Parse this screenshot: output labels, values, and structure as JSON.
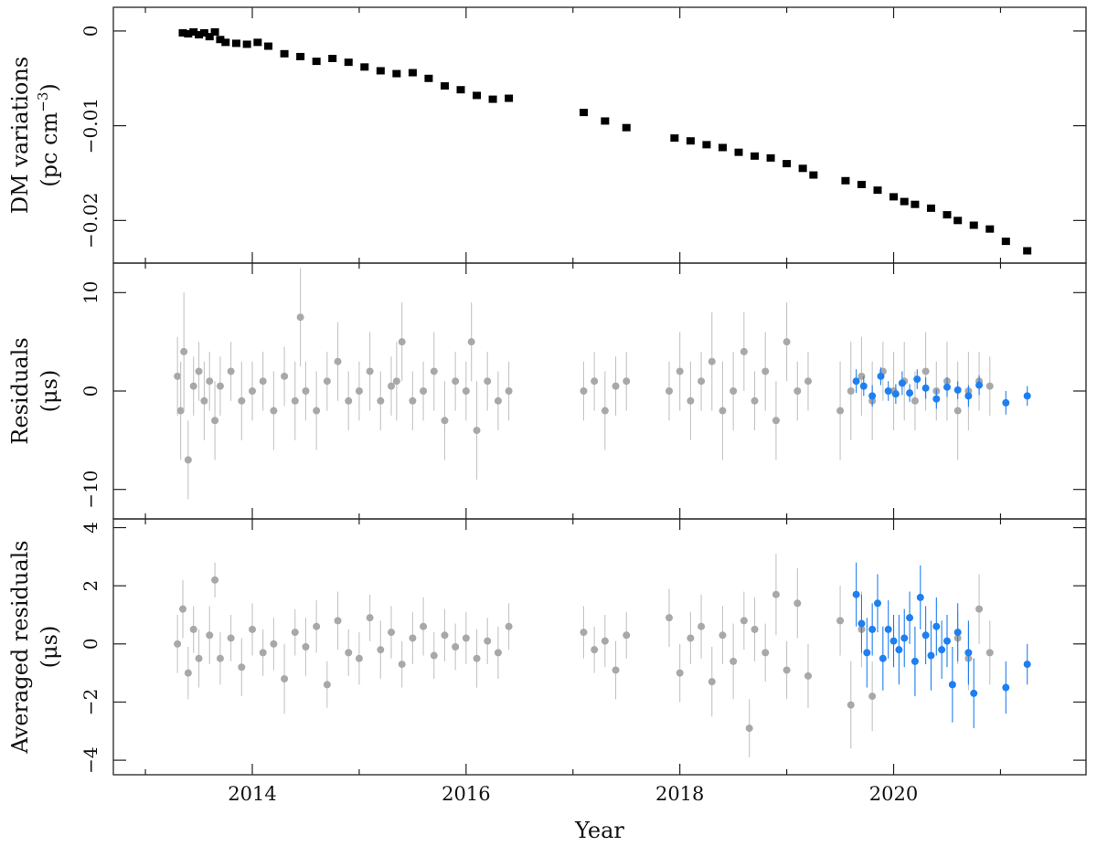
{
  "chart_data": [
    {
      "type": "scatter",
      "panel": "top",
      "ylabel_line1": "DM variations",
      "ylabel_line2_prefix": "(pc cm",
      "ylabel_line2_sup": "−3",
      "ylabel_line2_suffix": ")",
      "xlim": [
        2012.7,
        2021.8
      ],
      "ylim": [
        -0.0245,
        0.0025
      ],
      "yticks": [
        0,
        -0.01,
        -0.02
      ],
      "ytick_labels": [
        "0",
        "−0.01",
        "−0.02"
      ],
      "marker_color": "#000000",
      "series": [
        {
          "x": [
            2013.35,
            2013.4,
            2013.45,
            2013.5,
            2013.55,
            2013.6,
            2013.65,
            2013.7,
            2013.75,
            2013.85,
            2013.95,
            2014.05,
            2014.15,
            2014.3,
            2014.45,
            2014.6,
            2014.75,
            2014.9,
            2015.05,
            2015.2,
            2015.35,
            2015.5,
            2015.65,
            2015.8,
            2015.95,
            2016.1,
            2016.25,
            2016.4,
            2017.1,
            2017.3,
            2017.5,
            2017.95,
            2018.1,
            2018.25,
            2018.4,
            2018.55,
            2018.7,
            2018.85,
            2019.0,
            2019.15,
            2019.25,
            2019.55,
            2019.7,
            2019.85,
            2020.0,
            2020.1,
            2020.2,
            2020.35,
            2020.5,
            2020.6,
            2020.75,
            2020.9,
            2021.05,
            2021.25
          ],
          "y": [
            -0.0002,
            -0.0003,
            -0.0001,
            -0.0004,
            -0.0002,
            -0.0006,
            -0.0001,
            -0.0009,
            -0.0012,
            -0.0013,
            -0.0014,
            -0.0012,
            -0.0016,
            -0.0024,
            -0.0027,
            -0.0032,
            -0.0029,
            -0.0033,
            -0.0038,
            -0.0042,
            -0.0045,
            -0.0044,
            -0.005,
            -0.0058,
            -0.0062,
            -0.0068,
            -0.0072,
            -0.0071,
            -0.0086,
            -0.0095,
            -0.0102,
            -0.0113,
            -0.0116,
            -0.012,
            -0.0123,
            -0.0128,
            -0.0132,
            -0.0134,
            -0.014,
            -0.0145,
            -0.0152,
            -0.0158,
            -0.0162,
            -0.0168,
            -0.0175,
            -0.018,
            -0.0183,
            -0.0187,
            -0.0194,
            -0.02,
            -0.0205,
            -0.0209,
            -0.0222,
            -0.0232
          ]
        }
      ]
    },
    {
      "type": "scatter",
      "panel": "middle",
      "ylabel_line1": "Residuals",
      "ylabel_line2": "(μs)",
      "xlim": [
        2012.7,
        2021.8
      ],
      "ylim": [
        -13,
        13
      ],
      "yticks": [
        10,
        0,
        -10
      ],
      "ytick_labels": [
        "10",
        "0",
        "−10"
      ],
      "series": [
        {
          "color": "#a8a8a8",
          "x": [
            2013.3,
            2013.33,
            2013.36,
            2013.4,
            2013.45,
            2013.5,
            2013.55,
            2013.6,
            2013.65,
            2013.7,
            2013.8,
            2013.9,
            2014.0,
            2014.1,
            2014.2,
            2014.3,
            2014.4,
            2014.45,
            2014.5,
            2014.6,
            2014.7,
            2014.8,
            2014.9,
            2015.0,
            2015.1,
            2015.2,
            2015.3,
            2015.35,
            2015.4,
            2015.5,
            2015.6,
            2015.7,
            2015.8,
            2015.9,
            2016.0,
            2016.05,
            2016.1,
            2016.2,
            2016.3,
            2016.4,
            2017.1,
            2017.2,
            2017.3,
            2017.4,
            2017.5,
            2017.9,
            2018.0,
            2018.1,
            2018.2,
            2018.3,
            2018.4,
            2018.5,
            2018.6,
            2018.7,
            2018.8,
            2018.9,
            2019.0,
            2019.1,
            2019.2,
            2019.5,
            2019.6,
            2019.7,
            2019.8,
            2019.9,
            2020.0,
            2020.1,
            2020.2,
            2020.3,
            2020.4,
            2020.5,
            2020.6,
            2020.7,
            2020.8,
            2020.9
          ],
          "y": [
            1.5,
            -2,
            4,
            -7,
            0.5,
            2,
            -1,
            1,
            -3,
            0.5,
            2,
            -1,
            0,
            1,
            -2,
            1.5,
            -1,
            7.5,
            0,
            -2,
            1,
            3,
            -1,
            0,
            2,
            -1,
            0.5,
            1,
            5,
            -1,
            0,
            2,
            -3,
            1,
            0,
            5,
            -4,
            1,
            -1,
            0,
            0,
            1,
            -2,
            0.5,
            1,
            0,
            2,
            -1,
            1,
            3,
            -2,
            0,
            4,
            -1,
            2,
            -3,
            5,
            0,
            1,
            -2,
            0,
            1.5,
            -1,
            2,
            0,
            1,
            -1,
            2,
            0,
            1,
            -2,
            0,
            1,
            0.5
          ],
          "err": [
            4,
            5,
            6,
            4,
            3,
            3,
            4,
            3,
            4,
            3,
            3,
            4,
            3,
            3,
            4,
            3,
            4,
            5,
            3,
            4,
            3,
            4,
            3,
            3,
            4,
            3,
            3,
            4,
            4,
            3,
            3,
            4,
            4,
            3,
            3,
            4,
            5,
            3,
            3,
            3,
            3,
            3,
            4,
            3,
            3,
            3,
            4,
            4,
            3,
            5,
            5,
            4,
            4,
            3,
            4,
            4,
            4,
            3,
            3,
            5,
            5,
            4,
            4,
            3,
            4,
            4,
            3,
            4,
            3,
            4,
            5,
            4,
            3,
            3
          ]
        },
        {
          "color": "#1e7ff0",
          "x": [
            2019.65,
            2019.72,
            2019.8,
            2019.88,
            2019.95,
            2020.02,
            2020.08,
            2020.15,
            2020.22,
            2020.3,
            2020.4,
            2020.5,
            2020.6,
            2020.7,
            2020.8,
            2021.05,
            2021.25
          ],
          "y": [
            1,
            0.5,
            -0.5,
            1.5,
            0,
            -0.3,
            0.8,
            -0.2,
            1.2,
            0.3,
            -0.8,
            0.4,
            0.1,
            -0.5,
            0.6,
            -1.2,
            -0.5
          ],
          "err": [
            1.2,
            1,
            1.1,
            0.9,
            1,
            1,
            1.2,
            0.9,
            1,
            1.1,
            1,
            1,
            0.9,
            1.1,
            1,
            1.2,
            1
          ]
        }
      ]
    },
    {
      "type": "scatter",
      "panel": "bottom",
      "ylabel_line1": "Averaged residuals",
      "ylabel_line2": "(μs)",
      "xlabel": "Year",
      "xlim": [
        2012.7,
        2021.8
      ],
      "ylim": [
        -4.5,
        4.3
      ],
      "xticks": [
        2014,
        2016,
        2018,
        2020
      ],
      "xtick_labels": [
        "2014",
        "2016",
        "2018",
        "2020"
      ],
      "yticks": [
        4,
        2,
        0,
        -2,
        -4
      ],
      "ytick_labels": [
        "4",
        "2",
        "0",
        "−2",
        "−4"
      ],
      "series": [
        {
          "color": "#a8a8a8",
          "x": [
            2013.3,
            2013.35,
            2013.4,
            2013.45,
            2013.5,
            2013.6,
            2013.65,
            2013.7,
            2013.8,
            2013.9,
            2014.0,
            2014.1,
            2014.2,
            2014.3,
            2014.4,
            2014.5,
            2014.6,
            2014.7,
            2014.8,
            2014.9,
            2015.0,
            2015.1,
            2015.2,
            2015.3,
            2015.4,
            2015.5,
            2015.6,
            2015.7,
            2015.8,
            2015.9,
            2016.0,
            2016.1,
            2016.2,
            2016.3,
            2016.4,
            2017.1,
            2017.2,
            2017.3,
            2017.4,
            2017.5,
            2017.9,
            2018.0,
            2018.1,
            2018.2,
            2018.3,
            2018.4,
            2018.5,
            2018.6,
            2018.65,
            2018.7,
            2018.8,
            2018.9,
            2019.0,
            2019.1,
            2019.2,
            2019.5,
            2019.6,
            2019.7,
            2019.8,
            2020.6,
            2020.7,
            2020.8,
            2020.9
          ],
          "y": [
            0,
            1.2,
            -1,
            0.5,
            -0.5,
            0.3,
            2.2,
            -0.5,
            0.2,
            -0.8,
            0.5,
            -0.3,
            0,
            -1.2,
            0.4,
            -0.1,
            0.6,
            -1.4,
            0.8,
            -0.3,
            -0.5,
            0.9,
            -0.2,
            0.4,
            -0.7,
            0.2,
            0.6,
            -0.4,
            0.3,
            -0.1,
            0.2,
            -0.5,
            0.1,
            -0.3,
            0.6,
            0.4,
            -0.2,
            0.1,
            -0.9,
            0.3,
            0.9,
            -1,
            0.2,
            0.6,
            -1.3,
            0.3,
            -0.6,
            0.8,
            -2.9,
            0.5,
            -0.3,
            1.7,
            -0.9,
            1.4,
            -1.1,
            0.8,
            -2.1,
            0.5,
            -1.8,
            0.2,
            -0.5,
            1.2,
            -0.3
          ],
          "err": [
            1,
            1,
            0.9,
            0.8,
            1,
            1,
            0.6,
            0.9,
            0.8,
            1,
            0.9,
            0.8,
            0.9,
            1.2,
            0.8,
            1,
            0.9,
            0.8,
            1,
            0.8,
            0.9,
            0.8,
            1,
            0.9,
            0.8,
            0.9,
            1,
            0.8,
            0.9,
            0.8,
            0.9,
            1,
            0.8,
            0.9,
            0.8,
            0.9,
            0.8,
            0.9,
            1,
            0.8,
            1,
            1,
            0.9,
            1.1,
            1.2,
            1,
            1.3,
            1,
            1,
            1.1,
            1,
            1.4,
            1,
            1.2,
            1.1,
            1.2,
            1.5,
            1.3,
            1.2,
            0.9,
            1.1,
            1.2,
            1.1
          ]
        },
        {
          "color": "#1e7ff0",
          "x": [
            2019.65,
            2019.7,
            2019.75,
            2019.8,
            2019.85,
            2019.9,
            2019.95,
            2020.0,
            2020.05,
            2020.1,
            2020.15,
            2020.2,
            2020.25,
            2020.3,
            2020.35,
            2020.4,
            2020.45,
            2020.5,
            2020.55,
            2020.6,
            2020.7,
            2020.75,
            2021.05,
            2021.25
          ],
          "y": [
            1.7,
            0.7,
            -0.3,
            0.5,
            1.4,
            -0.5,
            0.5,
            0.1,
            -0.2,
            0.2,
            0.9,
            -0.6,
            1.6,
            0.3,
            -0.4,
            0.6,
            -0.2,
            0.1,
            -1.4,
            0.4,
            -0.3,
            -1.7,
            -1.5,
            -0.7
          ],
          "err": [
            1.1,
            1,
            1.2,
            0.9,
            1,
            1.1,
            1,
            0.9,
            1.2,
            1,
            0.9,
            1.2,
            1.1,
            1,
            1.2,
            1,
            1,
            0.9,
            1.3,
            1,
            1.1,
            1.2,
            0.9,
            0.7
          ]
        }
      ]
    }
  ]
}
